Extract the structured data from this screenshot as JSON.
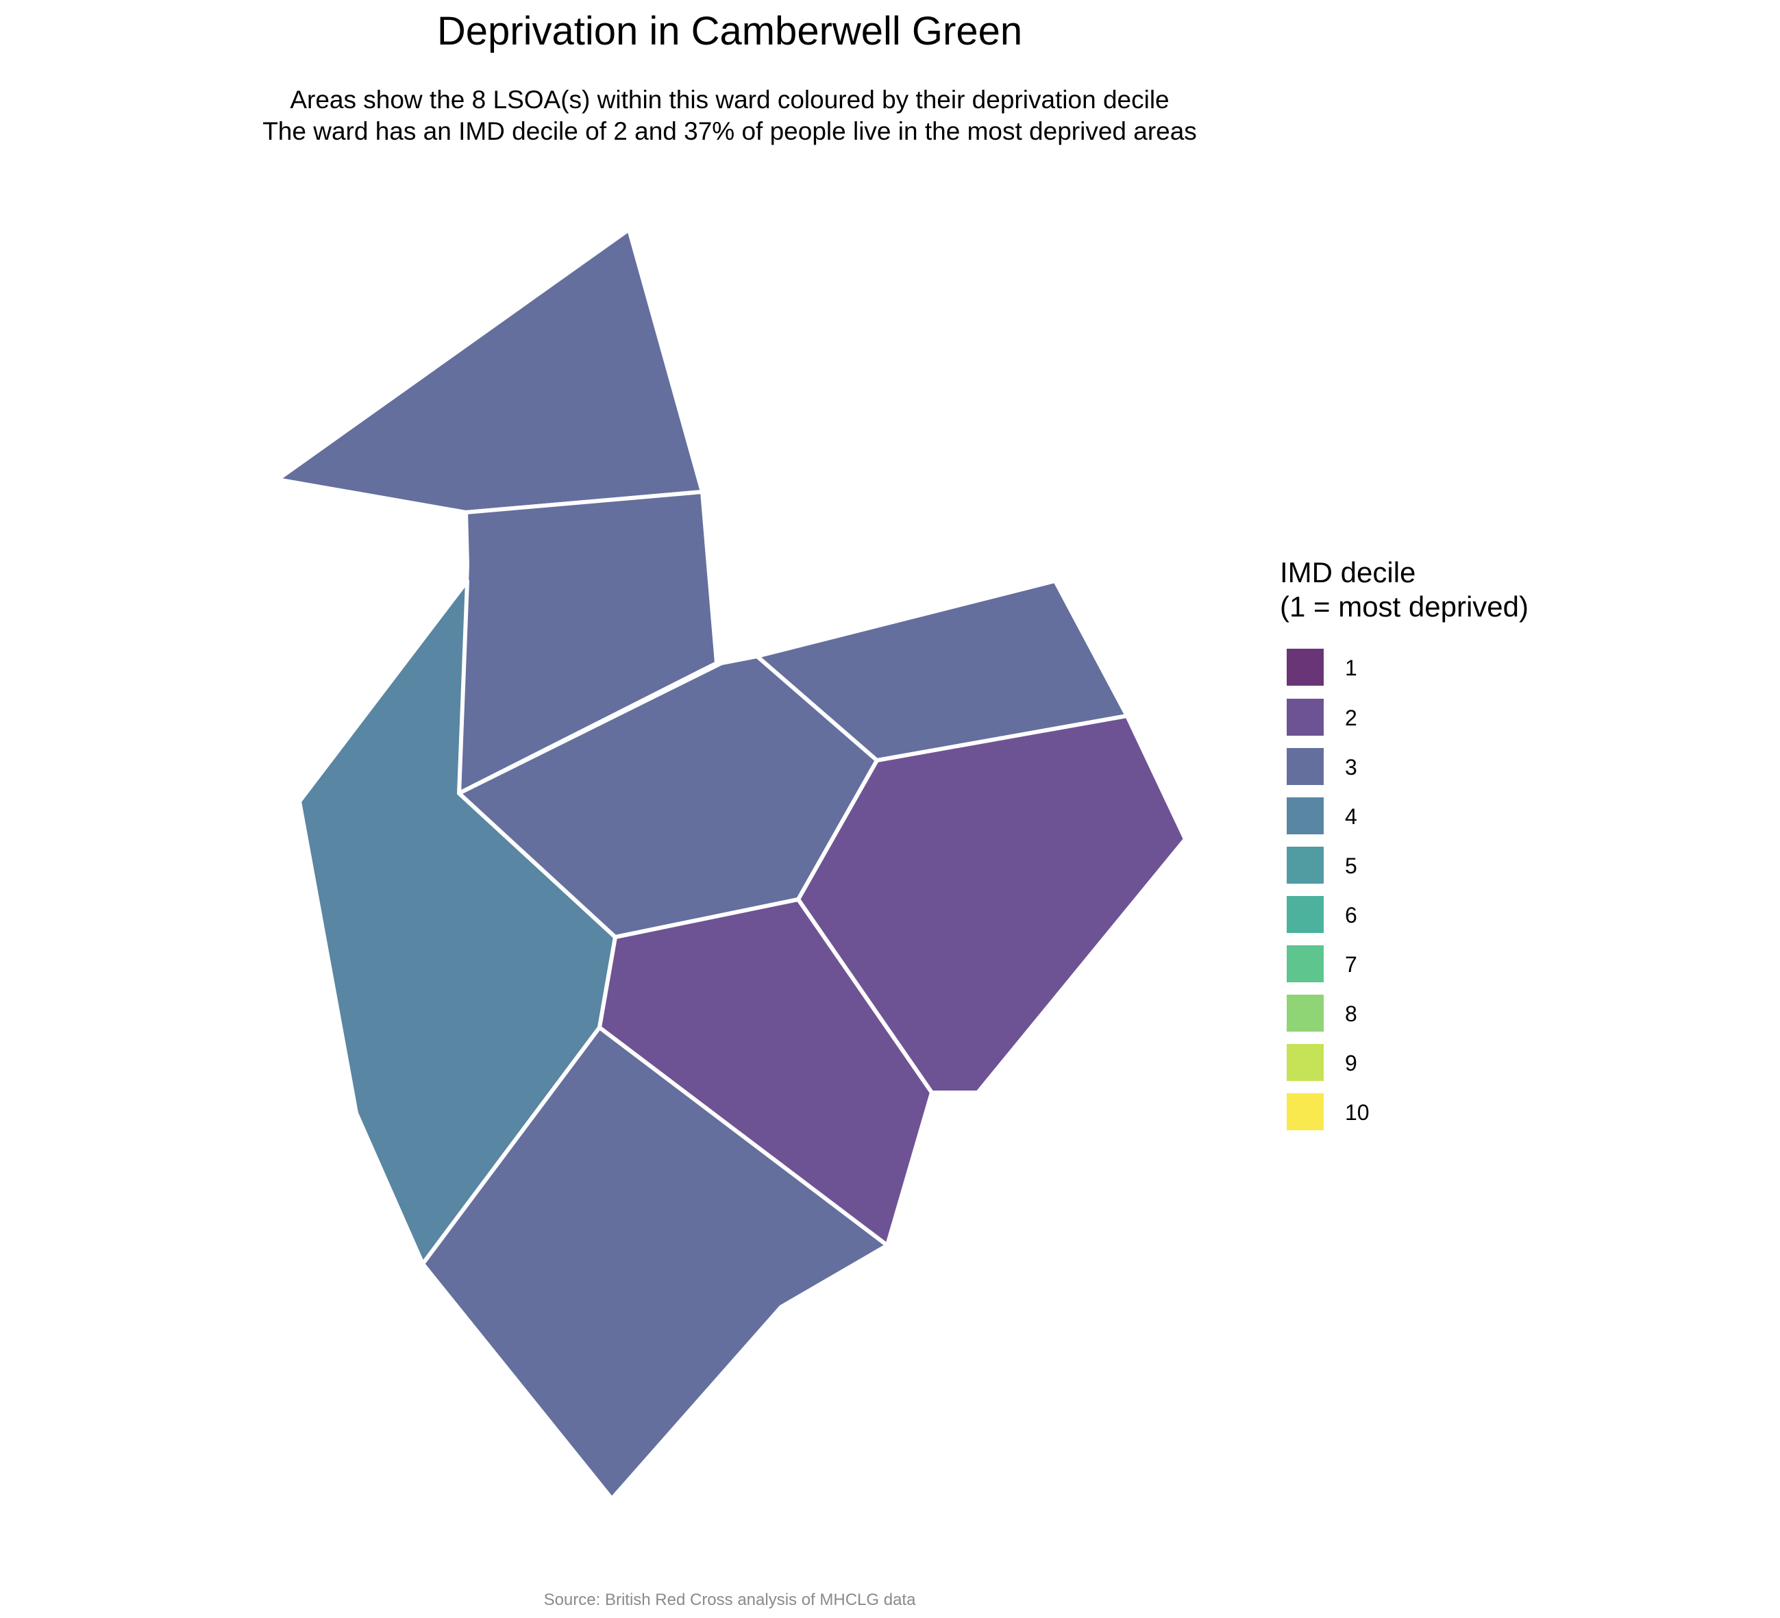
{
  "title": "Deprivation in Camberwell Green",
  "subtitle": [
    "Areas show the 8 LSOA(s) within this ward coloured by their deprivation decile",
    "The ward has an IMD decile of 2 and 37% of people live in the most deprived areas"
  ],
  "caption": "Source: British Red Cross analysis of MHCLG data",
  "legend": {
    "title": [
      "IMD decile",
      "(1 = most deprived)"
    ],
    "items": [
      {
        "label": "1",
        "color": "#6a3576"
      },
      {
        "label": "2",
        "color": "#6e5394"
      },
      {
        "label": "3",
        "color": "#646f9e"
      },
      {
        "label": "4",
        "color": "#5986a2"
      },
      {
        "label": "5",
        "color": "#519ba3"
      },
      {
        "label": "6",
        "color": "#4db29d"
      },
      {
        "label": "7",
        "color": "#5ec58f"
      },
      {
        "label": "8",
        "color": "#8fd475"
      },
      {
        "label": "9",
        "color": "#c6e256"
      },
      {
        "label": "10",
        "color": "#f9e94f"
      }
    ]
  },
  "areas": [
    {
      "id": "lsoa-north",
      "decile": 3
    },
    {
      "id": "lsoa-north-middle",
      "decile": 3
    },
    {
      "id": "lsoa-west",
      "decile": 4
    },
    {
      "id": "lsoa-central",
      "decile": 3
    },
    {
      "id": "lsoa-northeast",
      "decile": 3
    },
    {
      "id": "lsoa-east",
      "decile": 2
    },
    {
      "id": "lsoa-south-central",
      "decile": 2
    },
    {
      "id": "lsoa-south",
      "decile": 3
    }
  ]
}
